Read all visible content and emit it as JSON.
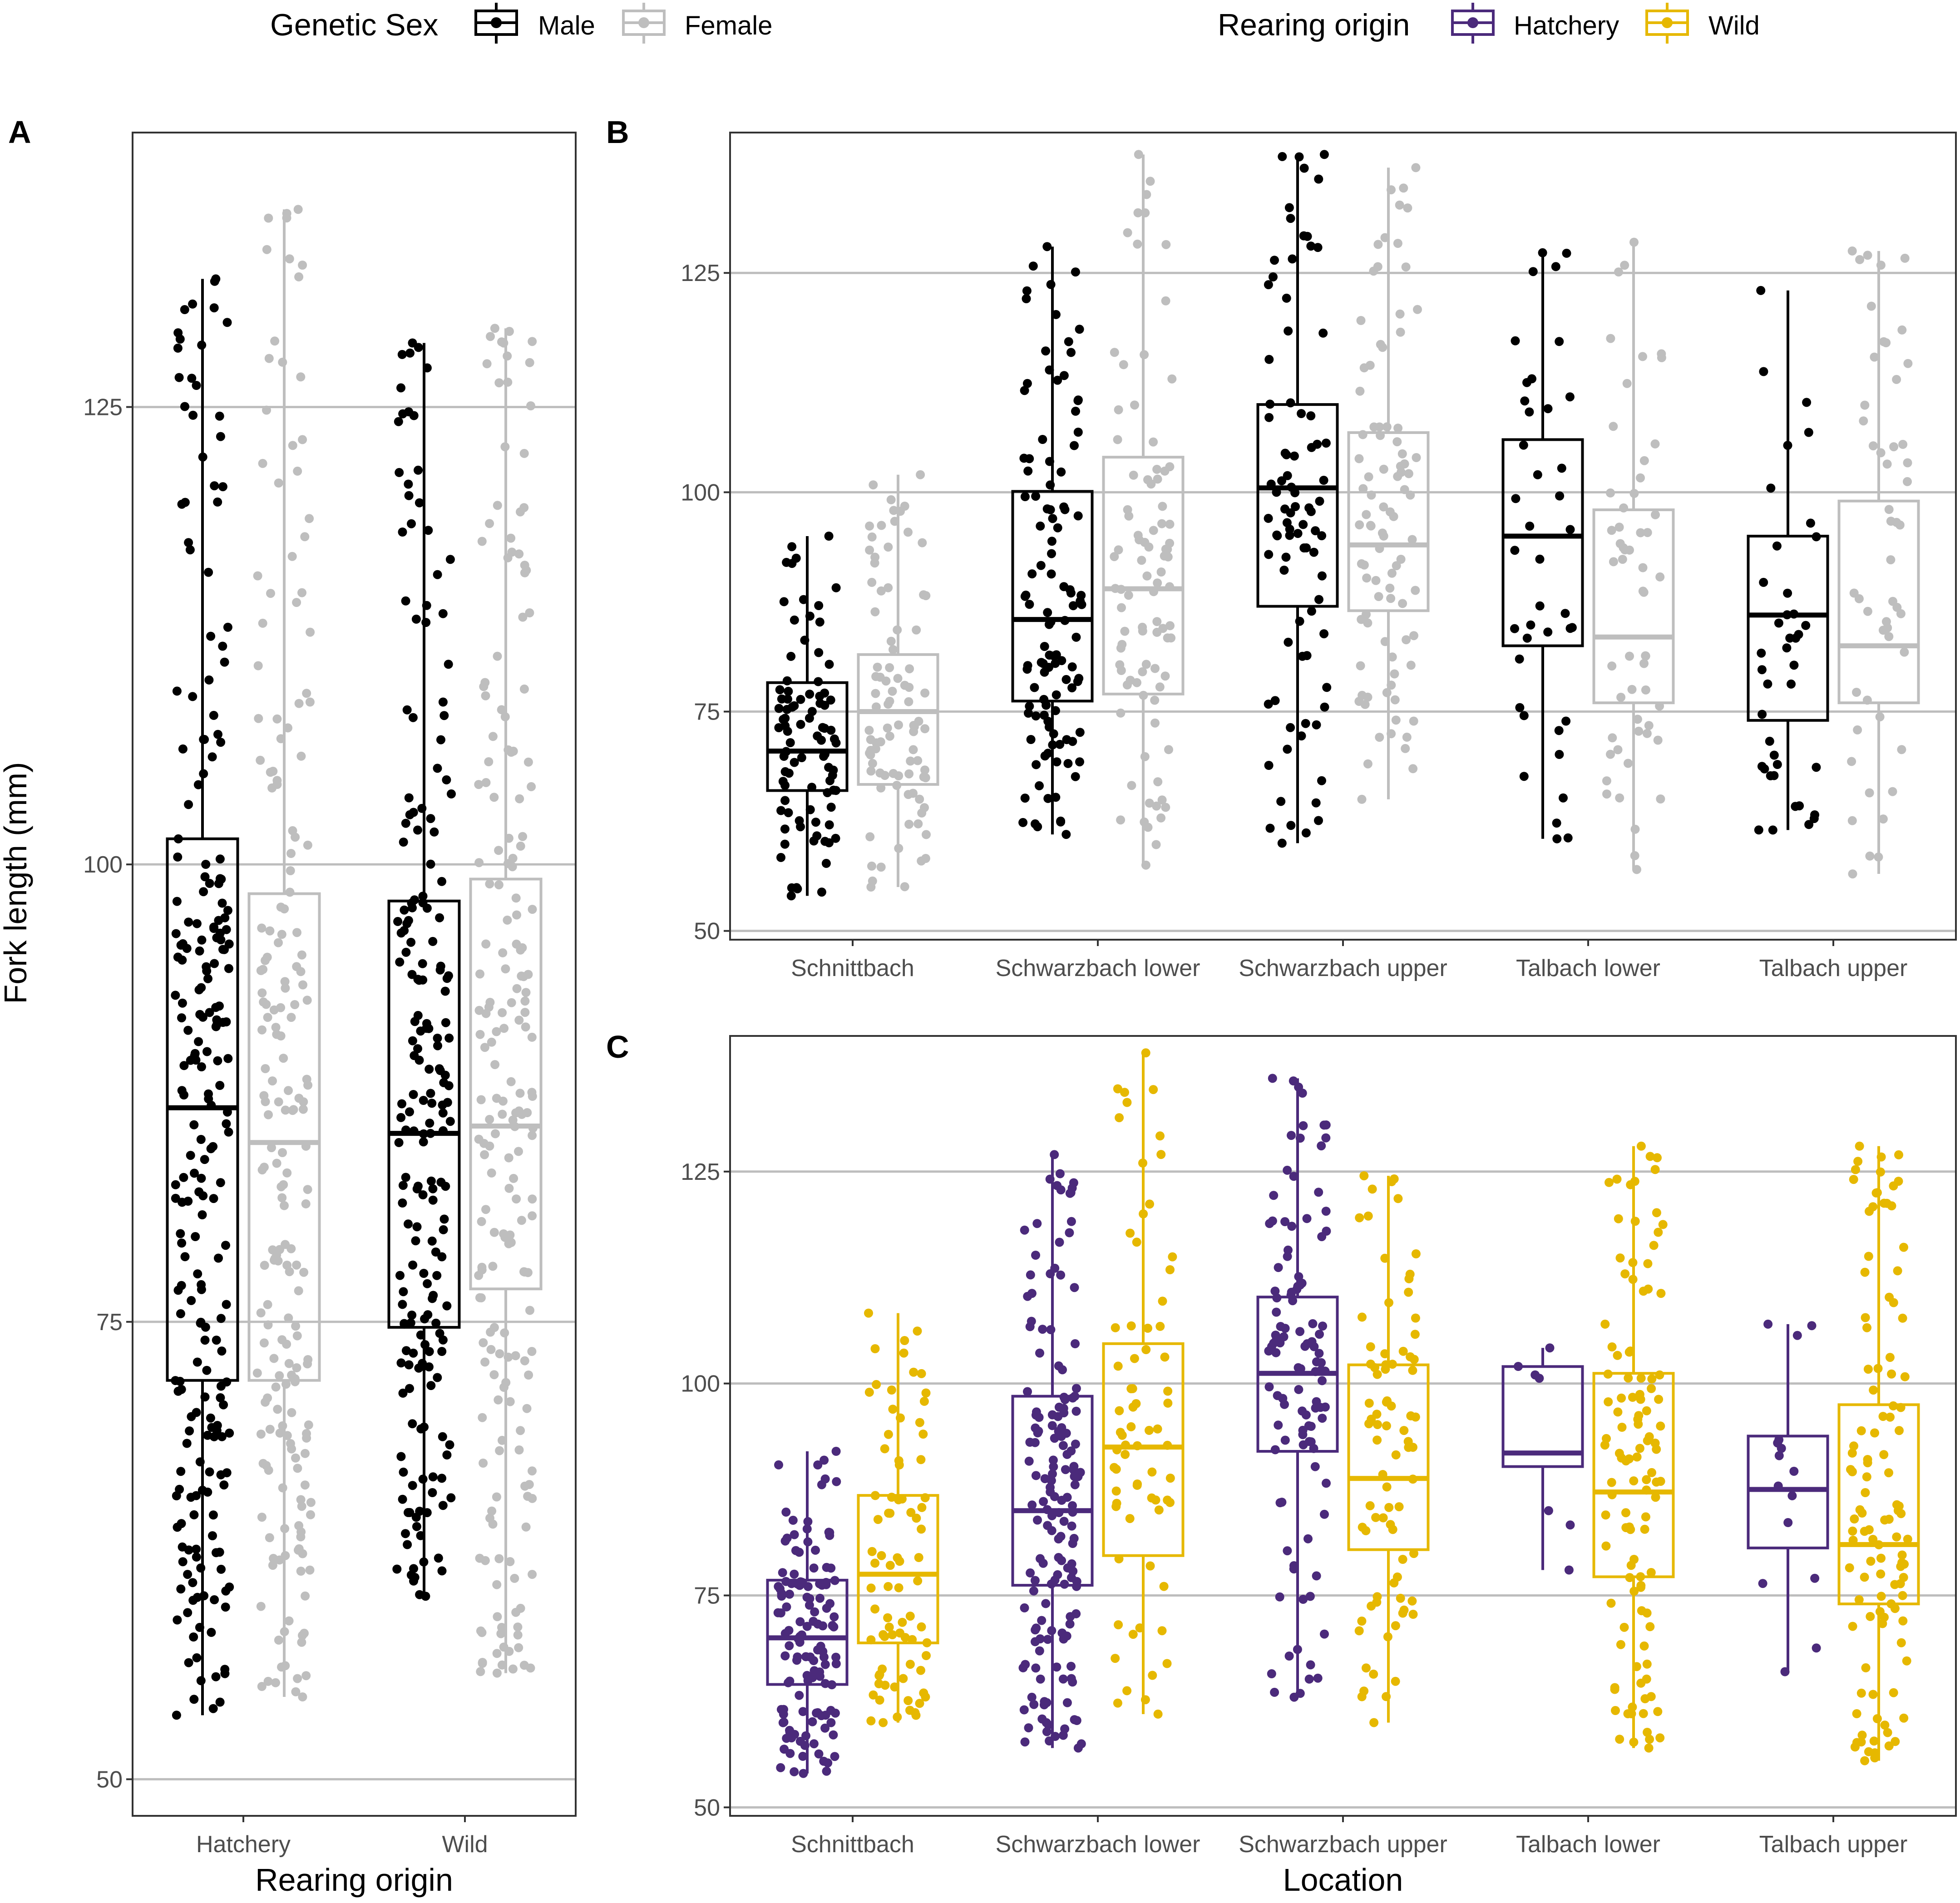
{
  "legends": {
    "sex": {
      "title": "Genetic Sex",
      "items": [
        {
          "label": "Male",
          "color": "#000000"
        },
        {
          "label": "Female",
          "color": "#bebebe"
        }
      ]
    },
    "origin": {
      "title": "Rearing origin",
      "items": [
        {
          "label": "Hatchery",
          "color": "#4b2a7b"
        },
        {
          "label": "Wild",
          "color": "#e6b800"
        }
      ]
    }
  },
  "y_axis_title": "Fork length (mm)",
  "chart_data": [
    {
      "panel": "A",
      "type": "boxplot",
      "xlabel": "Rearing origin",
      "ylabel": "Fork length (mm)",
      "ylim": [
        48,
        140
      ],
      "yticks": [
        50,
        75,
        100,
        125
      ],
      "categories": [
        "Hatchery",
        "Wild"
      ],
      "series": [
        {
          "name": "Male",
          "color": "#000000",
          "boxes": [
            {
              "category": "Hatchery",
              "min": 53.5,
              "q1": 71.8,
              "median": 86.7,
              "q3": 101.4,
              "max": 132.0,
              "n": 230
            },
            {
              "category": "Wild",
              "min": 60.0,
              "q1": 74.7,
              "median": 85.3,
              "q3": 98.0,
              "max": 128.5,
              "n": 200
            }
          ]
        },
        {
          "name": "Female",
          "color": "#bebebe",
          "boxes": [
            {
              "category": "Hatchery",
              "min": 54.5,
              "q1": 71.8,
              "median": 84.8,
              "q3": 98.4,
              "max": 135.8,
              "n": 200
            },
            {
              "category": "Wild",
              "min": 55.8,
              "q1": 76.8,
              "median": 85.7,
              "q3": 99.2,
              "max": 129.3,
              "n": 200
            }
          ]
        }
      ]
    },
    {
      "panel": "B",
      "type": "boxplot",
      "xlabel": "",
      "ylim": [
        49,
        141
      ],
      "yticks": [
        50,
        75,
        100,
        125
      ],
      "categories": [
        "Schnittbach",
        "Schwarzbach lower",
        "Schwarzbach upper",
        "Talbach lower",
        "Talbach upper"
      ],
      "series": [
        {
          "name": "Male",
          "color": "#000000",
          "boxes": [
            {
              "category": "Schnittbach",
              "min": 54.0,
              "q1": 66.0,
              "median": 70.5,
              "q3": 78.3,
              "max": 95.0,
              "n": 90
            },
            {
              "category": "Schwarzbach lower",
              "min": 61.0,
              "q1": 76.2,
              "median": 85.5,
              "q3": 100.1,
              "max": 128.0,
              "n": 110
            },
            {
              "category": "Schwarzbach upper",
              "min": 60.0,
              "q1": 87.0,
              "median": 100.5,
              "q3": 110.0,
              "max": 138.5,
              "n": 85
            },
            {
              "category": "Talbach lower",
              "min": 60.5,
              "q1": 82.5,
              "median": 95.0,
              "q3": 106.0,
              "max": 127.3,
              "n": 40
            },
            {
              "category": "Talbach upper",
              "min": 61.5,
              "q1": 74.0,
              "median": 86.0,
              "q3": 95.0,
              "max": 123.0,
              "n": 40
            }
          ]
        },
        {
          "name": "Female",
          "color": "#bebebe",
          "boxes": [
            {
              "category": "Schnittbach",
              "min": 55.0,
              "q1": 66.7,
              "median": 75.0,
              "q3": 81.5,
              "max": 102.0,
              "n": 90
            },
            {
              "category": "Schwarzbach lower",
              "min": 57.5,
              "q1": 77.0,
              "median": 89.0,
              "q3": 104.0,
              "max": 138.5,
              "n": 90
            },
            {
              "category": "Schwarzbach upper",
              "min": 65.0,
              "q1": 86.5,
              "median": 94.0,
              "q3": 106.8,
              "max": 137.0,
              "n": 90
            },
            {
              "category": "Talbach lower",
              "min": 57.0,
              "q1": 76.0,
              "median": 83.5,
              "q3": 98.0,
              "max": 128.5,
              "n": 55
            },
            {
              "category": "Talbach upper",
              "min": 56.5,
              "q1": 76.0,
              "median": 82.5,
              "q3": 99.0,
              "max": 127.5,
              "n": 50
            }
          ]
        }
      ]
    },
    {
      "panel": "C",
      "type": "boxplot",
      "xlabel": "Location",
      "ylim": [
        49,
        141
      ],
      "yticks": [
        50,
        75,
        100,
        125
      ],
      "categories": [
        "Schnittbach",
        "Schwarzbach lower",
        "Schwarzbach upper",
        "Talbach lower",
        "Talbach upper"
      ],
      "series": [
        {
          "name": "Hatchery",
          "color": "#4b2a7b",
          "boxes": [
            {
              "category": "Schnittbach",
              "min": 54.0,
              "q1": 64.5,
              "median": 70.0,
              "q3": 76.8,
              "max": 92.0,
              "n": 130
            },
            {
              "category": "Schwarzbach lower",
              "min": 57.0,
              "q1": 76.2,
              "median": 85.0,
              "q3": 98.5,
              "max": 127.0,
              "n": 160
            },
            {
              "category": "Schwarzbach upper",
              "min": 63.0,
              "q1": 92.0,
              "median": 101.2,
              "q3": 110.2,
              "max": 136.0,
              "n": 110
            },
            {
              "category": "Talbach lower",
              "min": 78.0,
              "q1": 90.2,
              "median": 91.8,
              "q3": 102.0,
              "max": 104.2,
              "n": 7
            },
            {
              "category": "Talbach upper",
              "min": 66.0,
              "q1": 80.6,
              "median": 87.5,
              "q3": 93.8,
              "max": 107.0,
              "n": 15
            }
          ]
        },
        {
          "name": "Wild",
          "color": "#e6b800",
          "boxes": [
            {
              "category": "Schnittbach",
              "min": 60.0,
              "q1": 69.4,
              "median": 77.5,
              "q3": 86.8,
              "max": 108.3,
              "n": 80
            },
            {
              "category": "Schwarzbach lower",
              "min": 61.0,
              "q1": 79.7,
              "median": 92.5,
              "q3": 104.7,
              "max": 139.0,
              "n": 70
            },
            {
              "category": "Schwarzbach upper",
              "min": 60.0,
              "q1": 80.4,
              "median": 88.8,
              "q3": 102.2,
              "max": 124.5,
              "n": 80
            },
            {
              "category": "Talbach lower",
              "min": 57.0,
              "q1": 77.2,
              "median": 87.2,
              "q3": 101.2,
              "max": 128.0,
              "n": 110
            },
            {
              "category": "Talbach upper",
              "min": 55.5,
              "q1": 74.0,
              "median": 81.0,
              "q3": 97.5,
              "max": 128.0,
              "n": 110
            }
          ]
        }
      ]
    }
  ]
}
